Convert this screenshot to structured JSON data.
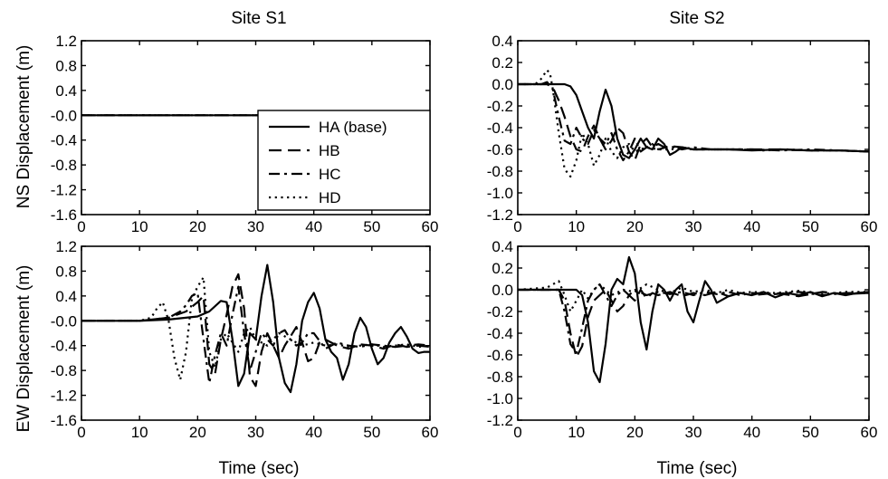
{
  "chart_data": [
    {
      "type": "line",
      "panel": "S1-NS",
      "title": "Site S1",
      "xlabel": "",
      "ylabel": "NS Displacement (m)",
      "xlim": [
        0,
        60
      ],
      "ylim": [
        -1.6,
        1.2
      ],
      "xticks": [
        "0",
        "10",
        "20",
        "30",
        "40",
        "50",
        "60"
      ],
      "yticks": [
        "1.2",
        "0.8",
        "0.4",
        "-0.0",
        "-0.4",
        "-0.8",
        "-1.2",
        "-1.6"
      ],
      "legend_position": "lower-right",
      "series": [
        {
          "name": "HA (base)",
          "style": "solid",
          "x": [
            0,
            60
          ],
          "y": [
            0,
            0
          ]
        },
        {
          "name": "HB",
          "style": "dashed",
          "x": [
            0,
            60
          ],
          "y": [
            0,
            0
          ]
        },
        {
          "name": "HC",
          "style": "dashdot",
          "x": [
            0,
            60
          ],
          "y": [
            0,
            0
          ]
        },
        {
          "name": "HD",
          "style": "dotted",
          "x": [
            0,
            60
          ],
          "y": [
            0,
            0
          ]
        }
      ]
    },
    {
      "type": "line",
      "panel": "S2-NS",
      "title": "Site S2",
      "xlabel": "",
      "ylabel": "",
      "xlim": [
        0,
        60
      ],
      "ylim": [
        -1.2,
        0.4
      ],
      "xticks": [
        "0",
        "10",
        "20",
        "30",
        "40",
        "50",
        "60"
      ],
      "yticks": [
        "0.4",
        "0.2",
        "0.0",
        "-0.2",
        "-0.4",
        "-0.6",
        "-0.8",
        "-1.0",
        "-1.2"
      ],
      "series": [
        {
          "name": "HA (base)",
          "style": "solid",
          "x": [
            0,
            8,
            9,
            10,
            11,
            12,
            13,
            14,
            15,
            16,
            17,
            18,
            19,
            20,
            21,
            22,
            23,
            24,
            25,
            26,
            27,
            28,
            30,
            32,
            34,
            36,
            40,
            45,
            50,
            55,
            60
          ],
          "y": [
            0,
            0,
            -0.02,
            -0.1,
            -0.25,
            -0.4,
            -0.5,
            -0.25,
            -0.05,
            -0.2,
            -0.5,
            -0.65,
            -0.68,
            -0.6,
            -0.5,
            -0.58,
            -0.6,
            -0.5,
            -0.55,
            -0.65,
            -0.62,
            -0.58,
            -0.6,
            -0.6,
            -0.6,
            -0.6,
            -0.61,
            -0.6,
            -0.61,
            -0.61,
            -0.62
          ]
        },
        {
          "name": "HB",
          "style": "dashed",
          "x": [
            0,
            5,
            6,
            7,
            8,
            9,
            10,
            11,
            12,
            13,
            14,
            15,
            16,
            17,
            18,
            19,
            20,
            21,
            22,
            23,
            24,
            25,
            26,
            28,
            30,
            33,
            36,
            40,
            45,
            50,
            55,
            60
          ],
          "y": [
            0,
            0,
            -0.03,
            -0.15,
            -0.3,
            -0.48,
            -0.6,
            -0.62,
            -0.48,
            -0.38,
            -0.5,
            -0.6,
            -0.52,
            -0.4,
            -0.45,
            -0.62,
            -0.7,
            -0.55,
            -0.5,
            -0.58,
            -0.55,
            -0.58,
            -0.57,
            -0.58,
            -0.6,
            -0.6,
            -0.6,
            -0.6,
            -0.6,
            -0.61,
            -0.61,
            -0.62
          ]
        },
        {
          "name": "HC",
          "style": "dashdot",
          "x": [
            0,
            4,
            5,
            6,
            7,
            8,
            9,
            10,
            11,
            12,
            13,
            14,
            15,
            16,
            17,
            18,
            19,
            20,
            21,
            22,
            23,
            24,
            26,
            28,
            30,
            33,
            36,
            40,
            45,
            50,
            55,
            60
          ],
          "y": [
            0,
            0,
            0.02,
            -0.05,
            -0.3,
            -0.52,
            -0.55,
            -0.4,
            -0.5,
            -0.55,
            -0.42,
            -0.5,
            -0.55,
            -0.45,
            -0.6,
            -0.7,
            -0.62,
            -0.5,
            -0.62,
            -0.58,
            -0.55,
            -0.6,
            -0.57,
            -0.6,
            -0.58,
            -0.6,
            -0.6,
            -0.6,
            -0.61,
            -0.6,
            -0.61,
            -0.62
          ]
        },
        {
          "name": "HD",
          "style": "dotted",
          "x": [
            0,
            3,
            4,
            5,
            5.5,
            6,
            7,
            8,
            9,
            10,
            11,
            12,
            13,
            14,
            15,
            16,
            17,
            18,
            19,
            20,
            22,
            24,
            26,
            28,
            30,
            34,
            38,
            42,
            46,
            50,
            55,
            60
          ],
          "y": [
            0,
            0,
            0.05,
            0.13,
            0.1,
            -0.05,
            -0.45,
            -0.78,
            -0.85,
            -0.7,
            -0.45,
            -0.55,
            -0.75,
            -0.65,
            -0.5,
            -0.62,
            -0.68,
            -0.58,
            -0.55,
            -0.62,
            -0.58,
            -0.6,
            -0.6,
            -0.59,
            -0.6,
            -0.6,
            -0.6,
            -0.61,
            -0.6,
            -0.61,
            -0.61,
            -0.62
          ]
        }
      ]
    },
    {
      "type": "line",
      "panel": "S1-EW",
      "title": "",
      "xlabel": "Time (sec)",
      "ylabel": "EW Displacement (m)",
      "xlim": [
        0,
        60
      ],
      "ylim": [
        -1.6,
        1.2
      ],
      "xticks": [
        "0",
        "10",
        "20",
        "30",
        "40",
        "50",
        "60"
      ],
      "yticks": [
        "1.2",
        "0.8",
        "0.4",
        "-0.0",
        "-0.4",
        "-0.8",
        "-1.2",
        "-1.6"
      ],
      "series": [
        {
          "name": "HA (base)",
          "style": "solid",
          "x": [
            0,
            10,
            15,
            20,
            22,
            24,
            25,
            26,
            27,
            28,
            29,
            30,
            31,
            32,
            33,
            34,
            35,
            36,
            37,
            38,
            39,
            40,
            41,
            42,
            43,
            44,
            45,
            46,
            47,
            48,
            49,
            50,
            51,
            52,
            53,
            54,
            55,
            56,
            57,
            58,
            59,
            60
          ],
          "y": [
            0,
            0,
            0.02,
            0.07,
            0.15,
            0.32,
            0.3,
            -0.3,
            -1.05,
            -0.85,
            -0.2,
            -0.3,
            0.4,
            0.9,
            0.3,
            -0.6,
            -1.0,
            -1.15,
            -0.7,
            0.0,
            0.3,
            0.45,
            0.2,
            -0.3,
            -0.5,
            -0.6,
            -0.95,
            -0.7,
            -0.2,
            0.05,
            -0.1,
            -0.45,
            -0.7,
            -0.6,
            -0.35,
            -0.2,
            -0.1,
            -0.25,
            -0.45,
            -0.52,
            -0.5,
            -0.5
          ]
        },
        {
          "name": "HB",
          "style": "dashed",
          "x": [
            0,
            10,
            15,
            18,
            20,
            21,
            22,
            23,
            24,
            25,
            26,
            27,
            28,
            29,
            30,
            31,
            32,
            33,
            34,
            35,
            36,
            37,
            38,
            39,
            40,
            41,
            42,
            44,
            46,
            48,
            50,
            52,
            54,
            56,
            58,
            60
          ],
          "y": [
            0,
            0,
            0.05,
            0.15,
            0.3,
            0.4,
            -0.7,
            -0.85,
            -0.3,
            0.1,
            0.55,
            0.75,
            0.2,
            -0.9,
            -1.05,
            -0.5,
            -0.2,
            -0.4,
            -0.6,
            -0.4,
            -0.25,
            -0.1,
            -0.35,
            -0.65,
            -0.6,
            -0.35,
            -0.3,
            -0.4,
            -0.45,
            -0.38,
            -0.4,
            -0.45,
            -0.38,
            -0.42,
            -0.4,
            -0.42
          ]
        },
        {
          "name": "HC",
          "style": "dashdot",
          "x": [
            0,
            10,
            15,
            17,
            18,
            19,
            20,
            21,
            22,
            23,
            24,
            25,
            26,
            27,
            28,
            29,
            30,
            31,
            32,
            33,
            34,
            35,
            36,
            37,
            38,
            39,
            40,
            42,
            44,
            46,
            48,
            50,
            52,
            54,
            56,
            58,
            60
          ],
          "y": [
            0,
            0,
            0.05,
            0.15,
            0.25,
            0.4,
            0.45,
            -0.3,
            -1.0,
            -0.55,
            -0.2,
            -0.4,
            0.1,
            0.55,
            -0.2,
            -0.8,
            -0.5,
            -0.2,
            -0.3,
            -0.4,
            -0.2,
            -0.15,
            -0.3,
            -0.4,
            -0.35,
            -0.2,
            -0.2,
            -0.45,
            -0.35,
            -0.4,
            -0.42,
            -0.38,
            -0.4,
            -0.42,
            -0.4,
            -0.38,
            -0.4
          ]
        },
        {
          "name": "HD",
          "style": "dotted",
          "x": [
            0,
            10,
            12,
            13,
            14,
            15,
            16,
            17,
            18,
            19,
            20,
            21,
            22,
            23,
            24,
            25,
            26,
            27,
            28,
            29,
            30,
            32,
            34,
            36,
            38,
            40,
            42,
            44,
            46,
            48,
            50,
            52,
            54,
            56,
            58,
            60
          ],
          "y": [
            0,
            0,
            0.05,
            0.2,
            0.3,
            0.0,
            -0.6,
            -0.95,
            -0.5,
            0.35,
            0.55,
            0.7,
            -0.5,
            -0.75,
            -0.3,
            -0.2,
            -0.35,
            -0.5,
            -0.2,
            -0.1,
            -0.3,
            -0.4,
            -0.2,
            -0.3,
            -0.4,
            -0.35,
            -0.4,
            -0.38,
            -0.42,
            -0.4,
            -0.38,
            -0.42,
            -0.4,
            -0.38,
            -0.42,
            -0.4
          ]
        }
      ]
    },
    {
      "type": "line",
      "panel": "S2-EW",
      "title": "",
      "xlabel": "Time (sec)",
      "ylabel": "",
      "xlim": [
        0,
        60
      ],
      "ylim": [
        -1.2,
        0.4
      ],
      "xticks": [
        "0",
        "10",
        "20",
        "30",
        "40",
        "50",
        "60"
      ],
      "yticks": [
        "0.4",
        "0.2",
        "0.0",
        "-0.2",
        "-0.4",
        "-0.6",
        "-0.8",
        "-1.0",
        "-1.2"
      ],
      "series": [
        {
          "name": "HA (base)",
          "style": "solid",
          "x": [
            0,
            8,
            10,
            11,
            12,
            13,
            14,
            15,
            16,
            17,
            18,
            19,
            20,
            21,
            22,
            23,
            24,
            25,
            26,
            27,
            28,
            29,
            30,
            31,
            32,
            33,
            34,
            36,
            38,
            40,
            42,
            44,
            46,
            48,
            50,
            52,
            54,
            56,
            58,
            60
          ],
          "y": [
            0,
            0,
            0,
            -0.05,
            -0.3,
            -0.75,
            -0.85,
            -0.5,
            0.0,
            0.1,
            0.05,
            0.3,
            0.15,
            -0.3,
            -0.55,
            -0.2,
            0.05,
            0.0,
            -0.1,
            0.0,
            0.05,
            -0.2,
            -0.3,
            -0.1,
            0.08,
            0.0,
            -0.12,
            -0.06,
            -0.03,
            -0.05,
            -0.02,
            -0.07,
            -0.03,
            -0.05,
            -0.02,
            -0.06,
            -0.03,
            -0.05,
            -0.03,
            -0.02
          ]
        },
        {
          "name": "HB",
          "style": "dashed",
          "x": [
            0,
            7,
            8,
            9,
            10,
            11,
            12,
            13,
            14,
            15,
            16,
            17,
            18,
            19,
            20,
            21,
            22,
            23,
            24,
            26,
            28,
            30,
            32,
            34,
            36,
            38,
            40,
            44,
            48,
            52,
            56,
            60
          ],
          "y": [
            0,
            0,
            -0.1,
            -0.4,
            -0.62,
            -0.52,
            -0.25,
            -0.1,
            -0.05,
            0.0,
            -0.1,
            -0.2,
            -0.15,
            -0.05,
            -0.1,
            0.0,
            -0.08,
            -0.03,
            -0.05,
            -0.02,
            -0.06,
            -0.03,
            -0.05,
            -0.02,
            -0.06,
            -0.03,
            -0.05,
            -0.03,
            -0.06,
            -0.02,
            -0.04,
            -0.03
          ]
        },
        {
          "name": "HC",
          "style": "dashdot",
          "x": [
            0,
            7,
            8,
            9,
            10,
            11,
            12,
            13,
            14,
            15,
            16,
            17,
            18,
            19,
            20,
            22,
            24,
            26,
            28,
            30,
            32,
            34,
            36,
            38,
            40,
            44,
            48,
            52,
            56,
            60
          ],
          "y": [
            0,
            0,
            -0.2,
            -0.5,
            -0.58,
            -0.35,
            -0.1,
            0.0,
            0.05,
            -0.05,
            -0.15,
            -0.05,
            0.0,
            -0.05,
            0.0,
            -0.05,
            -0.02,
            -0.04,
            -0.02,
            -0.05,
            -0.02,
            -0.04,
            -0.02,
            -0.05,
            -0.03,
            -0.04,
            -0.02,
            -0.05,
            -0.03,
            -0.03
          ]
        },
        {
          "name": "HD",
          "style": "dotted",
          "x": [
            0,
            5,
            6,
            7,
            8,
            9,
            10,
            11,
            12,
            13,
            14,
            15,
            16,
            18,
            20,
            22,
            24,
            26,
            28,
            30,
            32,
            34,
            36,
            38,
            40,
            44,
            48,
            52,
            56,
            60
          ],
          "y": [
            0,
            0.02,
            0.05,
            0.08,
            -0.05,
            -0.2,
            -0.1,
            0.0,
            -0.08,
            0.0,
            0.05,
            0.0,
            -0.05,
            0.0,
            -0.02,
            0.05,
            0.0,
            -0.03,
            0.02,
            -0.02,
            0.0,
            -0.03,
            0.0,
            -0.03,
            -0.02,
            -0.03,
            -0.01,
            -0.04,
            -0.02,
            -0.02
          ]
        }
      ]
    }
  ]
}
